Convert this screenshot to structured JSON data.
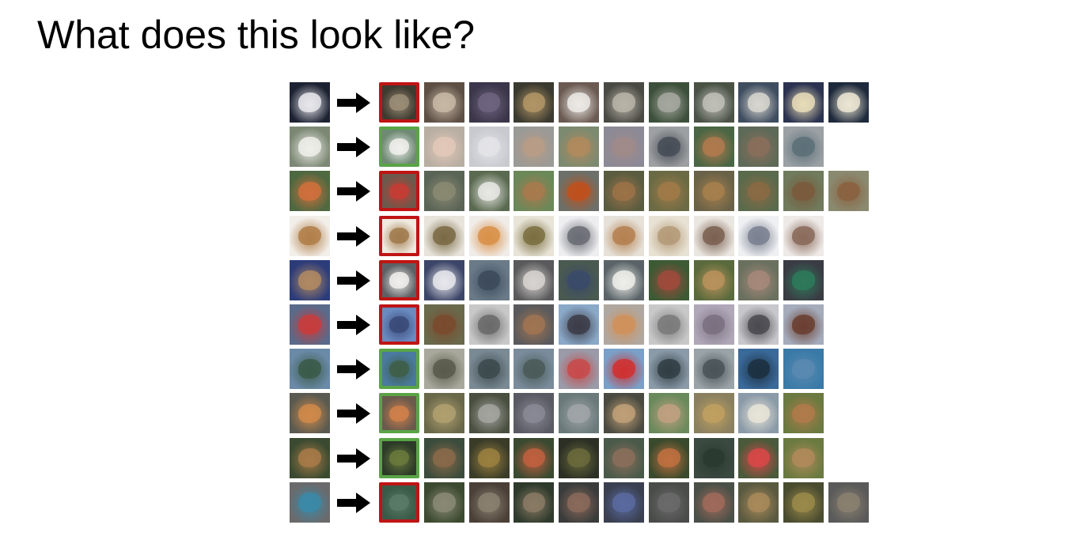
{
  "slide": {
    "title": "What does this look like?"
  },
  "icons": {
    "arrow": "right-arrow-icon"
  },
  "colors": {
    "correct": "#5aa446",
    "incorrect": "#c01414"
  },
  "rows": [
    {
      "match": "incorrect",
      "query": [
        "#1d2233",
        "#e8e8ec"
      ],
      "neighbors": [
        [
          "#3d3a30",
          "#9b8d76"
        ],
        [
          "#5e4f45",
          "#c8b9a6"
        ],
        [
          "#3b3649",
          "#6e6480"
        ],
        [
          "#3b3a30",
          "#b19566"
        ],
        [
          "#6b5a52",
          "#eceae6"
        ],
        [
          "#4a4a44",
          "#b9b4a8"
        ],
        [
          "#3c4f3a",
          "#a6a8a0"
        ],
        [
          "#4a5246",
          "#c0c0b8"
        ],
        [
          "#3f4d60",
          "#d7d6cf"
        ],
        [
          "#2b3350",
          "#e8dcb8"
        ],
        [
          "#1e2a3c",
          "#ece6d4"
        ]
      ]
    },
    {
      "match": "correct",
      "query": [
        "#7c8874",
        "#efeeea"
      ],
      "neighbors": [
        [
          "#6f8a74",
          "#f0efec"
        ],
        [
          "#b8aea2",
          "#e2c8b8"
        ],
        [
          "#c8cad0",
          "#e4e4e8"
        ],
        [
          "#9a9a96",
          "#b89c86"
        ],
        [
          "#7c8a70",
          "#b08a5c"
        ],
        [
          "#8c8a96",
          "#a08a8a"
        ],
        [
          "#9da0a2",
          "#464c56"
        ],
        [
          "#4a6644",
          "#b07a4e"
        ],
        [
          "#5e6a58",
          "#8a6e5a"
        ],
        [
          "#9aa0a4",
          "#5c7078"
        ]
      ]
    },
    {
      "match": "incorrect",
      "query": [
        "#4e6840",
        "#d0703c"
      ],
      "neighbors": [
        [
          "#6b5a4c",
          "#c63c34"
        ],
        [
          "#5a6456",
          "#8a8a72"
        ],
        [
          "#5a6a50",
          "#e8e8e4"
        ],
        [
          "#6a8858",
          "#a87a4e"
        ],
        [
          "#6c7068",
          "#c0501c"
        ],
        [
          "#5a5c40",
          "#9c7248"
        ],
        [
          "#6a6a44",
          "#a07a48"
        ],
        [
          "#6a6248",
          "#a6804c"
        ],
        [
          "#5a6a4c",
          "#8a6a44"
        ],
        [
          "#707a5c",
          "#7a5a3c"
        ],
        [
          "#8a8a70",
          "#8a6240"
        ]
      ]
    },
    {
      "match": "incorrect",
      "query": [
        "#f2eee8",
        "#b07e48"
      ],
      "neighbors": [
        [
          "#f0eae0",
          "#a07a4c"
        ],
        [
          "#e8e4dc",
          "#7a6a44"
        ],
        [
          "#f0ece8",
          "#d89048"
        ],
        [
          "#e8e4d8",
          "#7a6e40"
        ],
        [
          "#eeeef0",
          "#6a6c74"
        ],
        [
          "#e6e2da",
          "#b48050"
        ],
        [
          "#e8e2d4",
          "#b49a78"
        ],
        [
          "#eae6e0",
          "#7a6050"
        ],
        [
          "#eef0f2",
          "#7a8090"
        ],
        [
          "#eeeae8",
          "#8a6a5a"
        ]
      ]
    },
    {
      "match": "incorrect",
      "query": [
        "#2c3c7a",
        "#b08a62"
      ],
      "neighbors": [
        [
          "#5c6064",
          "#f0eeec"
        ],
        [
          "#3c4668",
          "#e8e8ec"
        ],
        [
          "#6a7a88",
          "#3c4a5c"
        ],
        [
          "#5a5a5c",
          "#d8d4d0"
        ],
        [
          "#4a5a50",
          "#3a4a6a"
        ],
        [
          "#5a6468",
          "#eeeeea"
        ],
        [
          "#3c5a34",
          "#a04a3c"
        ],
        [
          "#5a6a3c",
          "#b8925c"
        ],
        [
          "#6a705e",
          "#a6887a"
        ],
        [
          "#3a3c44",
          "#2e7a5a"
        ]
      ]
    },
    {
      "match": "incorrect",
      "query": [
        "#5a6a8a",
        "#c83c3c"
      ],
      "neighbors": [
        [
          "#6a8ac0",
          "#3a4a78"
        ],
        [
          "#6a6a4c",
          "#7a4a2e"
        ],
        [
          "#c8c8c8",
          "#6a6a6a"
        ],
        [
          "#5a5a5c",
          "#a07452"
        ],
        [
          "#8aa8c8",
          "#3c3c48"
        ],
        [
          "#b0a8a0",
          "#d0905a"
        ],
        [
          "#c8c8c8",
          "#7a7a7a"
        ],
        [
          "#b0a8b8",
          "#7a7080"
        ],
        [
          "#c8c8cc",
          "#4a4a50"
        ],
        [
          "#a4acbc",
          "#6a3e30"
        ]
      ]
    },
    {
      "match": "correct",
      "query": [
        "#6a8aa8",
        "#3a5a48"
      ],
      "neighbors": [
        [
          "#4a7aa0",
          "#3e5e46"
        ],
        [
          "#a8a89c",
          "#5a5a4c"
        ],
        [
          "#7a8a94",
          "#3c4a4c"
        ],
        [
          "#7a8c9c",
          "#4a5a58"
        ],
        [
          "#9a9aa8",
          "#c84a4a"
        ],
        [
          "#7aa0c8",
          "#d03030"
        ],
        [
          "#8a9aa8",
          "#303e44"
        ],
        [
          "#9aa4a8",
          "#4a5458"
        ],
        [
          "#3a6a9a",
          "#1c3040"
        ],
        [
          "#3a7aa8",
          "#5a8ab0"
        ]
      ]
    },
    {
      "match": "correct",
      "query": [
        "#5a5a50",
        "#d08a4a"
      ],
      "neighbors": [
        [
          "#6a5a4c",
          "#d0804a"
        ],
        [
          "#6a684a",
          "#b0a070"
        ],
        [
          "#4a5040",
          "#a4a4a0"
        ],
        [
          "#5a5a64",
          "#8a8a96"
        ],
        [
          "#6a7a7a",
          "#a0a4a8"
        ],
        [
          "#4a4a40",
          "#c0a078"
        ],
        [
          "#6a8a5c",
          "#c0a080"
        ],
        [
          "#8a8060",
          "#c0a060"
        ],
        [
          "#8a9aa8",
          "#e8e4d8"
        ],
        [
          "#6a7a40",
          "#b07a4a"
        ]
      ]
    },
    {
      "match": "correct",
      "query": [
        "#3a4a30",
        "#a87a48"
      ],
      "neighbors": [
        [
          "#2c3a28",
          "#6a7a3c"
        ],
        [
          "#3c4c3c",
          "#8a6a4a"
        ],
        [
          "#3a3c28",
          "#9a8040"
        ],
        [
          "#3a4a30",
          "#c06040"
        ],
        [
          "#2c3024",
          "#6a6a3c"
        ],
        [
          "#4a5a4a",
          "#8a6e5a"
        ],
        [
          "#3a4a2c",
          "#c07040"
        ],
        [
          "#3a4a40",
          "#2a3a30"
        ],
        [
          "#4a5a3a",
          "#d84848"
        ],
        [
          "#6a7a40",
          "#b08a5a"
        ]
      ]
    },
    {
      "match": "incorrect",
      "query": [
        "#6a6a6c",
        "#3a8aa8"
      ],
      "neighbors": [
        [
          "#3a5a48",
          "#5a7a68"
        ],
        [
          "#3c4a30",
          "#8a8a74"
        ],
        [
          "#4a4038",
          "#8a8070"
        ],
        [
          "#2e3a2c",
          "#8a7a64"
        ],
        [
          "#3a3c3c",
          "#8a6a5a"
        ],
        [
          "#3a4050",
          "#5a6aa0"
        ],
        [
          "#4a4c4a",
          "#6a6a6a"
        ],
        [
          "#4a5048",
          "#a06a5a"
        ],
        [
          "#5a5a40",
          "#a88a5a"
        ],
        [
          "#4a4c30",
          "#9a8a4a"
        ],
        [
          "#5a5a5a",
          "#8a8070"
        ]
      ]
    }
  ]
}
